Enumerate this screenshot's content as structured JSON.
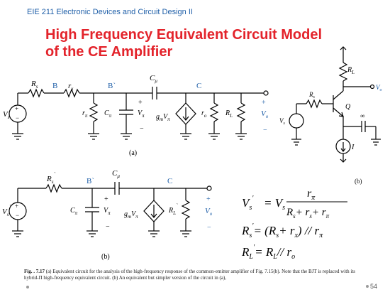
{
  "header": {
    "course": "EIE 211 Electronic Devices and Circuit Design II",
    "title_line1": "High Frequency Equivalent Circuit Model",
    "title_line2": "of the CE Amplifier"
  },
  "circuit_a": {
    "label": "(a)",
    "source": "V",
    "source_sub": "s",
    "rs": "R",
    "rs_sub": "s",
    "node_b": "B",
    "rx": "r",
    "rx_sub": "x",
    "node_b2": "B`",
    "cmu": "C",
    "cmu_sub": "μ",
    "node_c": "C",
    "rpi": "r",
    "rpi_sub": "π",
    "cpi": "C",
    "cpi_sub": "π",
    "vpi": "V",
    "vpi_sub": "π",
    "plus": "+",
    "minus": "−",
    "gm": "g",
    "gm_sub": "m",
    "gm_v": "V",
    "gm_vsub": "π",
    "ro": "r",
    "ro_sub": "o",
    "rl": "R",
    "rl_sub": "L",
    "vo": "V",
    "vo_sub": "o"
  },
  "circuit_b": {
    "label": "(b)",
    "source": "V",
    "source_sub": "s",
    "source_prime": "`",
    "rs": "R",
    "rs_sub": "s",
    "rs_prime": "`",
    "node_b2": "B`",
    "cmu": "C",
    "cmu_sub": "μ",
    "node_c": "C",
    "cpi": "C",
    "cpi_sub": "π",
    "vpi": "V",
    "vpi_sub": "π",
    "gm": "g",
    "gm_sub": "m",
    "gm_v": "V",
    "gm_vsub": "π",
    "rl": "R",
    "rl_sub": "L",
    "rl_prime": "`",
    "vo": "V",
    "vo_sub": "o",
    "plus": "+",
    "minus": "−"
  },
  "transistor_circuit": {
    "label": "(b)",
    "rl": "R",
    "rl_sub": "L",
    "vo": "V",
    "vo_sub": "o",
    "rs": "R",
    "rs_sub": "s",
    "q": "Q",
    "vs": "V",
    "vs_sub": "s",
    "inf": "∞",
    "i": "I"
  },
  "equations": {
    "eq1_lhs": "V",
    "eq1_lhs_sub": "s",
    "eq1_prime": "'",
    "eq1_eq": "= V",
    "eq1_sub": "s",
    "eq1_num": "r",
    "eq1_num_sub": "π",
    "eq1_den": "R",
    "eq1_den_sub1": "s",
    "eq1_den_mid": "+ r",
    "eq1_den_sub2": "s",
    "eq1_den_end": "+ r",
    "eq1_den_sub3": "π",
    "eq2_text": "R",
    "eq2_sub": "s",
    "eq2_prime": "'",
    "eq2_rhs": "= (R",
    "eq2_rhs_sub": "s",
    "eq2_mid": "+ r",
    "eq2_mid_sub": "x",
    "eq2_end": ") // r",
    "eq2_end_sub": "π",
    "eq3_text": "R",
    "eq3_sub": "L",
    "eq3_prime": "'",
    "eq3_rhs": "= R",
    "eq3_rhs_sub": "L",
    "eq3_end": "// r",
    "eq3_end_sub": "o"
  },
  "caption": {
    "fig": "Fig. . 7.17",
    "text": "(a) Equivalent circuit for the analysis of the high-frequency response of the common-emitter amplifier of Fig. 7.15(b). Note that the BJT is replaced with its hybrid-Π high-frequency equivalent circuit. (b) An equivalent but simpler version of the circuit in (a),"
  },
  "footer": {
    "page": "54"
  },
  "colors": {
    "title": "#e3232b",
    "course": "#1f5fa8",
    "node_label": "#1f5fa8"
  }
}
